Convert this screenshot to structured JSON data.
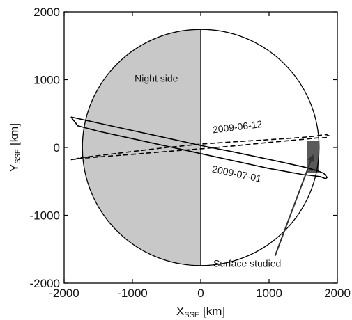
{
  "chart_data": {
    "type": "line",
    "xlabel": {
      "main": "X",
      "sub": "SSE",
      "unit": " [km]"
    },
    "ylabel": {
      "main": "Y",
      "sub": "SSE",
      "unit": " [km]"
    },
    "xlim": [
      -2000,
      2000
    ],
    "ylim": [
      -2000,
      2000
    ],
    "xticks": [
      -2000,
      -1000,
      0,
      1000,
      2000
    ],
    "yticks": [
      -2000,
      -1000,
      0,
      1000,
      2000
    ],
    "grid": false,
    "body": {
      "radius": 1737,
      "night_side": "x<0",
      "night_color": "#c8c8c8"
    },
    "series": [
      {
        "name": "2009-06-12",
        "style": "dashed",
        "x": [
          -1760,
          -1500,
          -1000,
          -500,
          0,
          500,
          1000,
          1500,
          1700,
          1780,
          1840,
          1880,
          1860,
          1800,
          1700,
          1500,
          1000,
          500,
          0,
          -500,
          -1000,
          -1500,
          -1750,
          -1900,
          -1850,
          -1760
        ],
        "y": [
          -150,
          -120,
          -60,
          0,
          50,
          85,
          115,
          150,
          170,
          185,
          190,
          170,
          150,
          145,
          140,
          120,
          75,
          25,
          -20,
          -60,
          -100,
          -140,
          -160,
          -180,
          -175,
          -150
        ]
      },
      {
        "name": "2009-07-01",
        "style": "solid",
        "x": [
          -1900,
          -1500,
          -1000,
          -500,
          0,
          500,
          1000,
          1500,
          1700,
          1800,
          1850,
          1830,
          1750,
          1600,
          1500,
          1000,
          500,
          0,
          -500,
          -1000,
          -1500,
          -1800,
          -1900
        ],
        "y": [
          450,
          360,
          250,
          140,
          30,
          -70,
          -175,
          -285,
          -340,
          -380,
          -440,
          -460,
          -430,
          -410,
          -400,
          -310,
          -200,
          -90,
          20,
          130,
          240,
          320,
          450
        ]
      }
    ],
    "surface_region": {
      "x": [
        1560,
        1730
      ],
      "y": [
        -370,
        100
      ],
      "color": "#5a5a5a"
    },
    "annotations": [
      {
        "text": "Night side",
        "x": -650,
        "y": 970
      },
      {
        "text": "2009-06-12",
        "x": 180,
        "y": 210
      },
      {
        "text": "2009-07-01",
        "x": 160,
        "y": -360
      },
      {
        "text": "Surface studied",
        "x": 680,
        "y": -1760,
        "arrow_to": [
          1640,
          -120
        ]
      }
    ]
  }
}
